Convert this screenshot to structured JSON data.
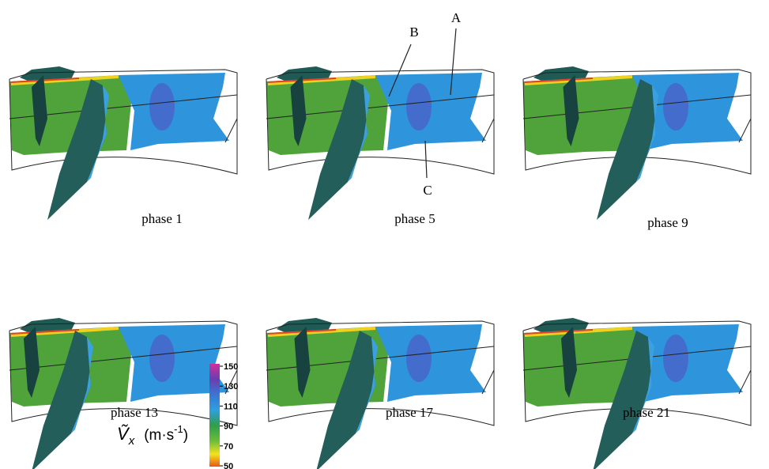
{
  "panels": [
    {
      "label": "phase 1"
    },
    {
      "label": "phase 5"
    },
    {
      "label": "phase 9"
    },
    {
      "label": "phase 13"
    },
    {
      "label": "phase 17"
    },
    {
      "label": "phase 21"
    }
  ],
  "annotations": [
    "A",
    "B",
    "C"
  ],
  "colorbar": {
    "symbol": "Ṽ",
    "subscript": "x",
    "unit": "(m·s",
    "superscript": "-1",
    "unit_end": ")",
    "lim": [
      50,
      150
    ],
    "ticks": [
      150,
      130,
      110,
      90,
      70,
      50
    ]
  }
}
